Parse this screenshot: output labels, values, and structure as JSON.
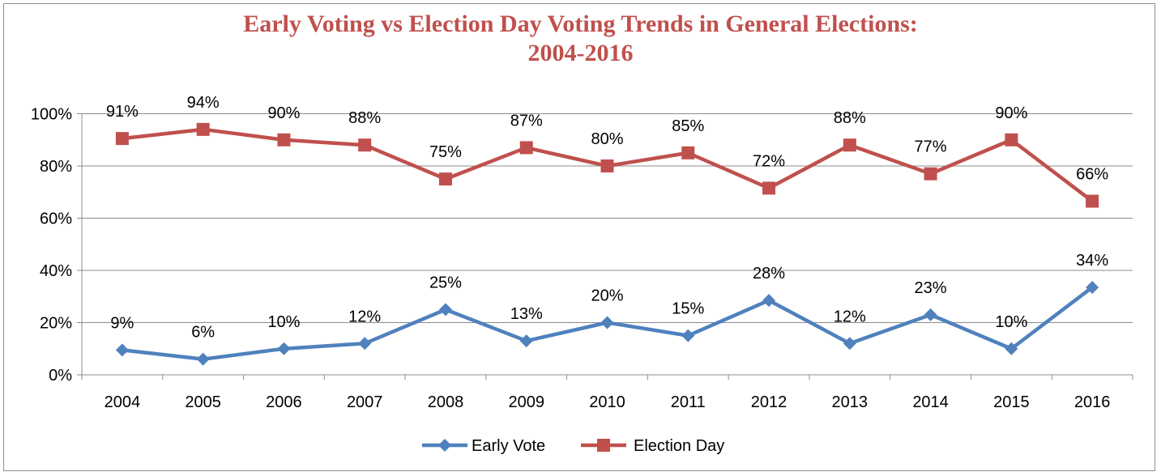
{
  "chart_data": {
    "type": "line",
    "title_line1": "Early Voting vs Election Day Voting Trends in General Elections:",
    "title_line2": "2004-2016",
    "categories": [
      "2004",
      "2005",
      "2006",
      "2007",
      "2008",
      "2009",
      "2010",
      "2011",
      "2012",
      "2013",
      "2014",
      "2015",
      "2016"
    ],
    "y_ticks": [
      "0%",
      "20%",
      "40%",
      "60%",
      "80%",
      "100%"
    ],
    "ylim": [
      0,
      100
    ],
    "grid": true,
    "legend_position": "bottom",
    "series": [
      {
        "name": "Early Vote",
        "color": "#4f81bd",
        "marker": "diamond",
        "values": [
          9.5,
          6,
          10,
          12,
          25,
          13,
          20,
          15,
          28.5,
          12,
          23,
          10,
          33.5
        ],
        "labels": [
          "9%",
          "6%",
          "10%",
          "12%",
          "25%",
          "13%",
          "20%",
          "15%",
          "28%",
          "12%",
          "23%",
          "10%",
          "34%"
        ]
      },
      {
        "name": "Election Day",
        "color": "#c0504d",
        "marker": "square",
        "values": [
          90.5,
          94,
          90,
          88,
          75,
          87,
          80,
          85,
          71.5,
          88,
          77,
          90,
          66.5
        ],
        "labels": [
          "91%",
          "94%",
          "90%",
          "88%",
          "75%",
          "87%",
          "80%",
          "85%",
          "72%",
          "88%",
          "77%",
          "90%",
          "66%"
        ]
      }
    ]
  }
}
